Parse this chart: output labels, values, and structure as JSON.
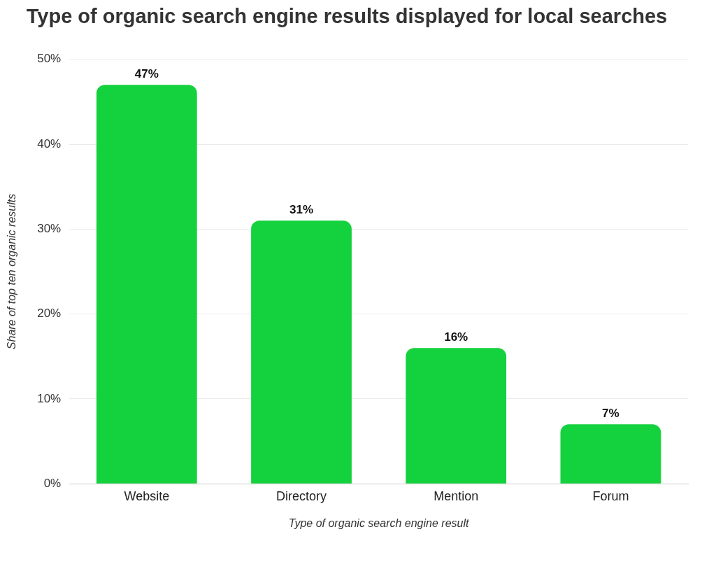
{
  "chart_data": {
    "type": "bar",
    "title": "Type of organic search engine results displayed for local searches",
    "xlabel": "Type of organic search engine result",
    "ylabel": "Share of top ten organic results",
    "categories": [
      "Website",
      "Directory",
      "Mention",
      "Forum"
    ],
    "values": [
      47,
      31,
      16,
      7
    ],
    "color": "#14d13e",
    "value_labels": [
      "47%",
      "31%",
      "16%",
      "7%"
    ],
    "ylim": [
      0,
      50
    ],
    "yticks": [
      {
        "value": 0,
        "label": "0%"
      },
      {
        "value": 10,
        "label": "10%"
      },
      {
        "value": 20,
        "label": "20%"
      },
      {
        "value": 30,
        "label": "30%"
      },
      {
        "value": 40,
        "label": "40%"
      },
      {
        "value": 50,
        "label": "50%"
      }
    ],
    "grid": "y",
    "legend": false
  }
}
